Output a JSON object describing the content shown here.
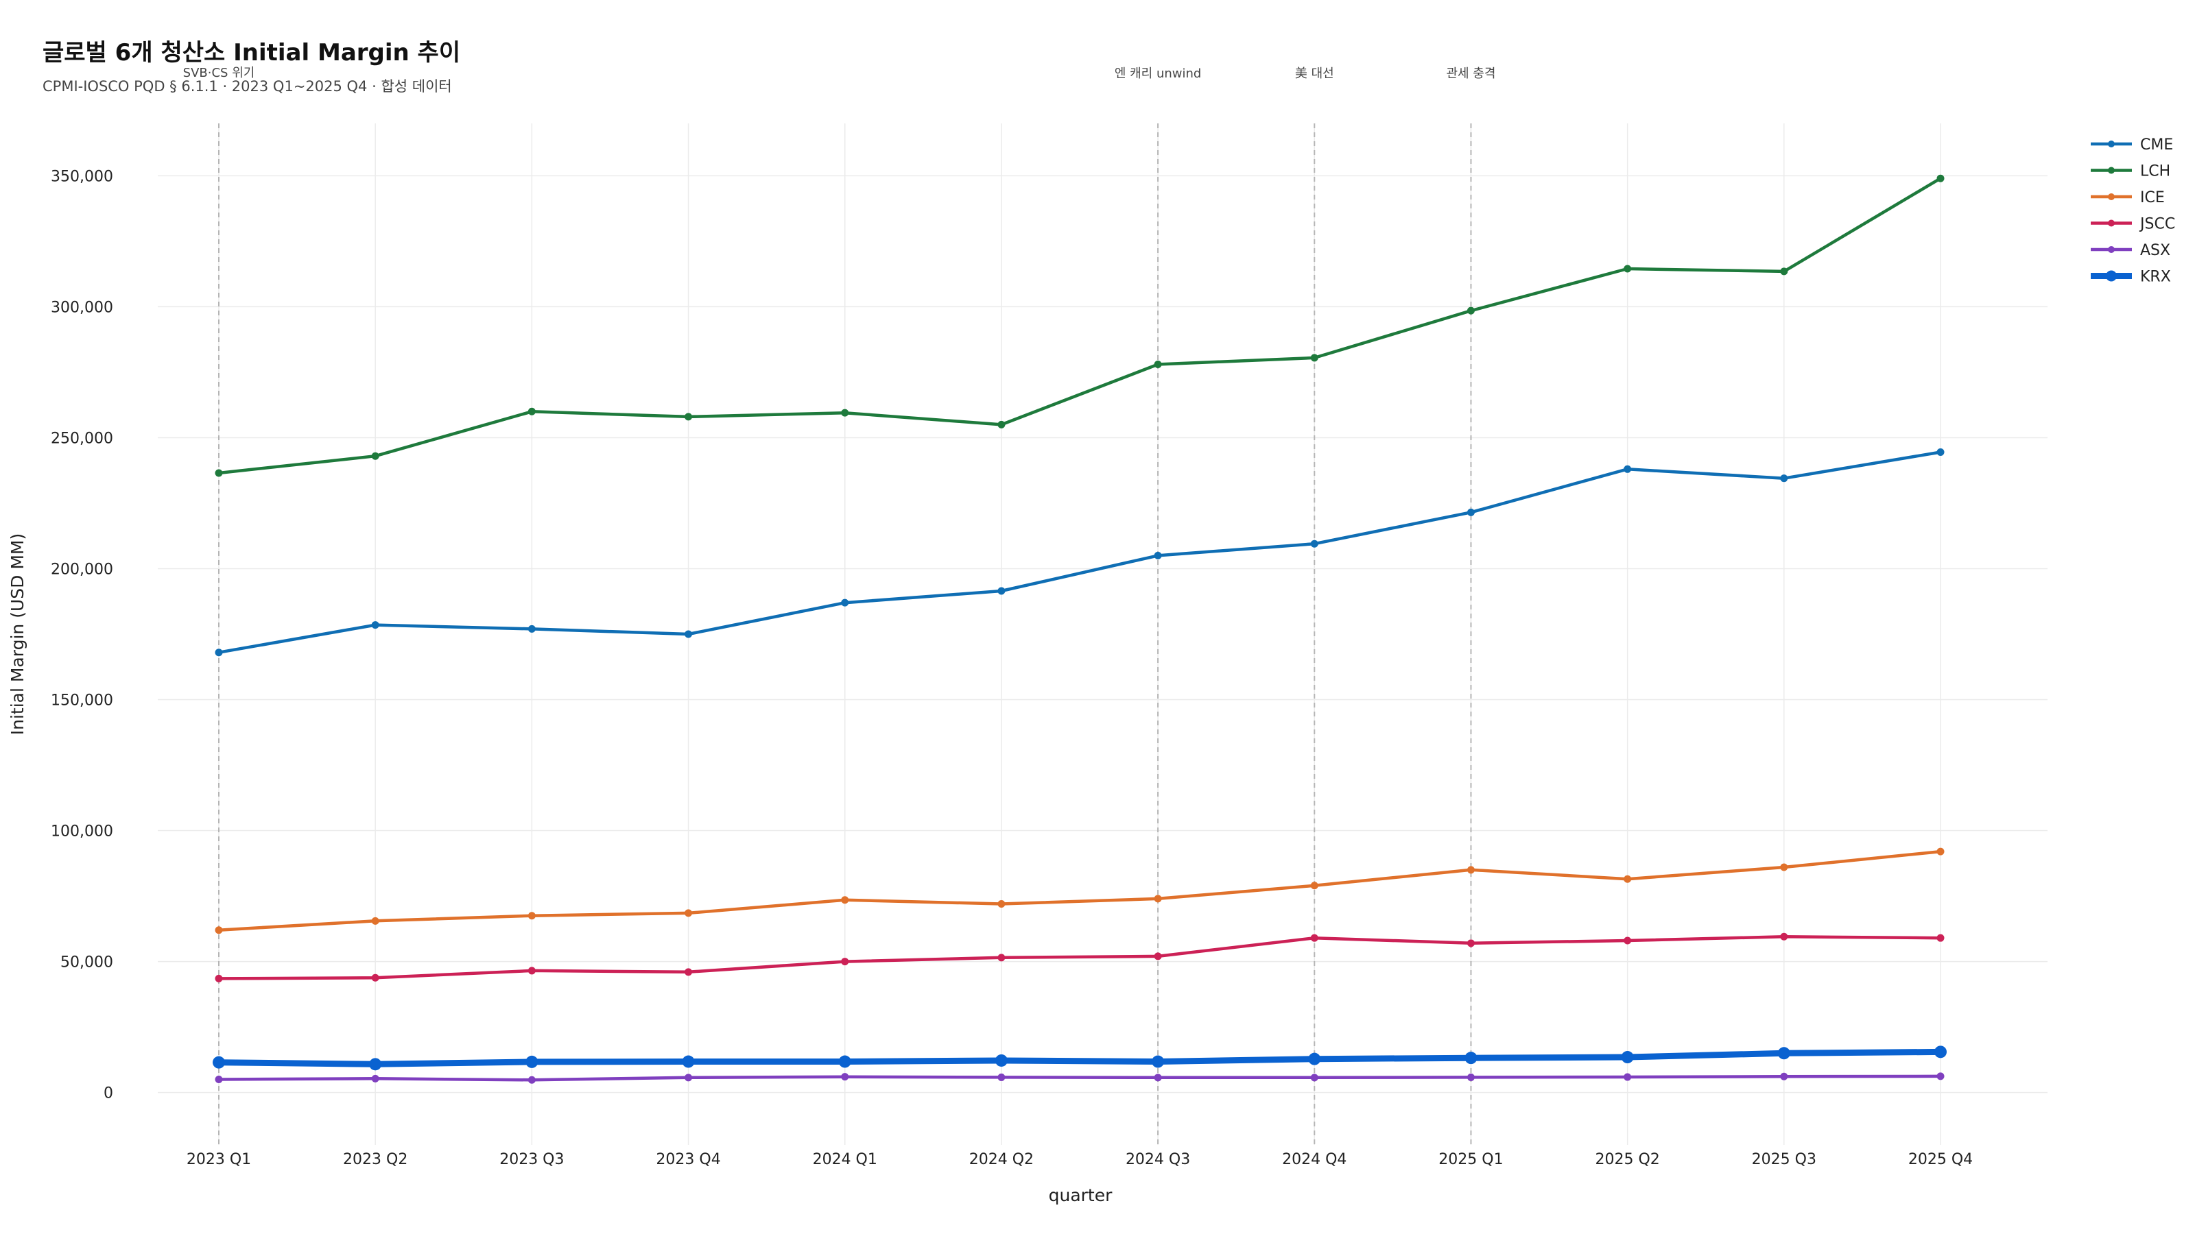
{
  "colors": {
    "CME": "#0f6eb4",
    "LCH": "#1e7a3c",
    "ICE": "#e0712b",
    "JSCC": "#cc2156",
    "ASX": "#7f3fbf",
    "KRX": "#0a62d0"
  },
  "chart_data": {
    "type": "line",
    "title": "글로벌 6개 청산소 Initial Margin 추이",
    "subtitle": "CPMI-IOSCO PQD § 6.1.1 · 2023 Q1~2025 Q4 · 합성 데이터",
    "xlabel": "quarter",
    "ylabel": "Initial Margin (USD MM)",
    "categories": [
      "2023 Q1",
      "2023 Q2",
      "2023 Q3",
      "2023 Q4",
      "2024 Q1",
      "2024 Q2",
      "2024 Q3",
      "2024 Q4",
      "2025 Q1",
      "2025 Q2",
      "2025 Q3",
      "2025 Q4"
    ],
    "ylim": [
      -20000,
      370000
    ],
    "yticks": [
      0,
      50000,
      100000,
      150000,
      200000,
      250000,
      300000,
      350000
    ],
    "ytick_labels": [
      "0",
      "50,000",
      "100,000",
      "150,000",
      "200,000",
      "250,000",
      "300,000",
      "350,000"
    ],
    "grid": true,
    "legend_position": "right-top",
    "series": [
      {
        "name": "CME",
        "values": [
          168000,
          178500,
          177000,
          175000,
          187000,
          191500,
          205000,
          209500,
          221500,
          238000,
          234500,
          244500
        ]
      },
      {
        "name": "LCH",
        "values": [
          236500,
          243000,
          260000,
          258000,
          259500,
          255000,
          278000,
          280500,
          298500,
          314500,
          313500,
          349000
        ]
      },
      {
        "name": "ICE",
        "values": [
          62000,
          65500,
          67500,
          68500,
          73500,
          72000,
          74000,
          79000,
          85000,
          81500,
          86000,
          92000
        ]
      },
      {
        "name": "JSCC",
        "values": [
          43500,
          43800,
          46500,
          46000,
          50000,
          51500,
          52000,
          59000,
          57000,
          58000,
          59500,
          59000
        ]
      },
      {
        "name": "ASX",
        "values": [
          5000,
          5300,
          4800,
          5700,
          6000,
          5800,
          5700,
          5700,
          5800,
          5900,
          6100,
          6200
        ]
      },
      {
        "name": "KRX",
        "values": [
          11500,
          10800,
          11700,
          11800,
          11800,
          12200,
          11800,
          12800,
          13200,
          13500,
          15000,
          15500
        ]
      }
    ],
    "events": [
      {
        "label": "SVB·CS 위기",
        "category": "2023 Q1"
      },
      {
        "label": "엔 캐리 unwind",
        "category": "2024 Q3"
      },
      {
        "label": "美 대선",
        "category": "2024 Q4"
      },
      {
        "label": "관세 충격",
        "category": "2025 Q1"
      }
    ]
  }
}
